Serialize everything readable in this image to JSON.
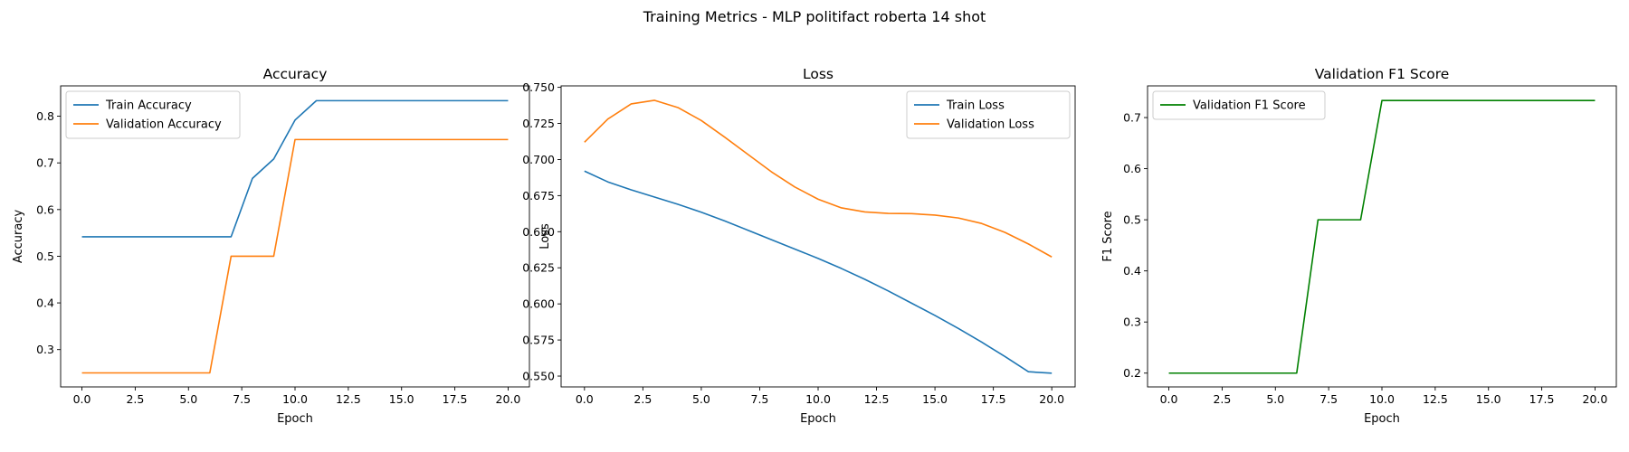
{
  "figure": {
    "title": "Training Metrics - MLP politifact roberta 14 shot"
  },
  "colors": {
    "train": "#1f77b4",
    "validation": "#ff7f0e",
    "f1": "#008000"
  },
  "chart_data": [
    {
      "type": "line",
      "title": "Accuracy",
      "xlabel": "Epoch",
      "ylabel": "Accuracy",
      "xlim": [
        -1,
        21
      ],
      "ylim": [
        0.22,
        0.865
      ],
      "xticks": [
        "0.0",
        "2.5",
        "5.0",
        "7.5",
        "10.0",
        "12.5",
        "15.0",
        "17.5",
        "20.0"
      ],
      "yticks": [
        "0.3",
        "0.4",
        "0.5",
        "0.6",
        "0.7",
        "0.8"
      ],
      "legend": "top-left",
      "x": [
        0,
        1,
        2,
        3,
        4,
        5,
        6,
        7,
        8,
        9,
        10,
        11,
        12,
        13,
        14,
        15,
        16,
        17,
        18,
        19,
        20
      ],
      "series": [
        {
          "name": "Train Accuracy",
          "color": "#1f77b4",
          "values": [
            0.5417,
            0.5417,
            0.5417,
            0.5417,
            0.5417,
            0.5417,
            0.5417,
            0.5417,
            0.6667,
            0.7083,
            0.7917,
            0.8333,
            0.8333,
            0.8333,
            0.8333,
            0.8333,
            0.8333,
            0.8333,
            0.8333,
            0.8333,
            0.8333
          ]
        },
        {
          "name": "Validation Accuracy",
          "color": "#ff7f0e",
          "values": [
            0.25,
            0.25,
            0.25,
            0.25,
            0.25,
            0.25,
            0.25,
            0.5,
            0.5,
            0.5,
            0.75,
            0.75,
            0.75,
            0.75,
            0.75,
            0.75,
            0.75,
            0.75,
            0.75,
            0.75,
            0.75
          ]
        }
      ]
    },
    {
      "type": "line",
      "title": "Loss",
      "xlabel": "Epoch",
      "ylabel": "Loss",
      "xlim": [
        -1,
        21
      ],
      "ylim": [
        0.5425,
        0.751
      ],
      "xticks": [
        "0.0",
        "2.5",
        "5.0",
        "7.5",
        "10.0",
        "12.5",
        "15.0",
        "17.5",
        "20.0"
      ],
      "yticks": [
        "0.550",
        "0.575",
        "0.600",
        "0.625",
        "0.650",
        "0.675",
        "0.700",
        "0.725",
        "0.750"
      ],
      "legend": "top-right",
      "x": [
        0,
        1,
        2,
        3,
        4,
        5,
        6,
        7,
        8,
        9,
        10,
        11,
        12,
        13,
        14,
        15,
        16,
        17,
        18,
        19,
        20
      ],
      "series": [
        {
          "name": "Train Loss",
          "color": "#1f77b4",
          "values": [
            0.692,
            0.6845,
            0.679,
            0.674,
            0.669,
            0.6635,
            0.6575,
            0.651,
            0.6445,
            0.638,
            0.6315,
            0.6245,
            0.617,
            0.609,
            0.6005,
            0.592,
            0.583,
            0.5735,
            0.5635,
            0.553,
            0.552
          ]
        },
        {
          "name": "Validation Loss",
          "color": "#ff7f0e",
          "values": [
            0.712,
            0.728,
            0.7385,
            0.741,
            0.736,
            0.727,
            0.7155,
            0.7035,
            0.6915,
            0.681,
            0.6725,
            0.6665,
            0.6637,
            0.6627,
            0.6625,
            0.6615,
            0.6595,
            0.6557,
            0.6495,
            0.6415,
            0.6325
          ]
        }
      ]
    },
    {
      "type": "line",
      "title": "Validation F1 Score",
      "xlabel": "Epoch",
      "ylabel": "F1 Score",
      "xlim": [
        -1,
        21
      ],
      "ylim": [
        0.173,
        0.762
      ],
      "xticks": [
        "0.0",
        "2.5",
        "5.0",
        "7.5",
        "10.0",
        "12.5",
        "15.0",
        "17.5",
        "20.0"
      ],
      "yticks": [
        "0.2",
        "0.3",
        "0.4",
        "0.5",
        "0.6",
        "0.7"
      ],
      "legend": "top-left",
      "x": [
        0,
        1,
        2,
        3,
        4,
        5,
        6,
        7,
        8,
        9,
        10,
        11,
        12,
        13,
        14,
        15,
        16,
        17,
        18,
        19,
        20
      ],
      "series": [
        {
          "name": "Validation F1 Score",
          "color": "#008000",
          "values": [
            0.2,
            0.2,
            0.2,
            0.2,
            0.2,
            0.2,
            0.2,
            0.5,
            0.5,
            0.5,
            0.7333,
            0.7333,
            0.7333,
            0.7333,
            0.7333,
            0.7333,
            0.7333,
            0.7333,
            0.7333,
            0.7333,
            0.7333
          ]
        }
      ]
    }
  ]
}
